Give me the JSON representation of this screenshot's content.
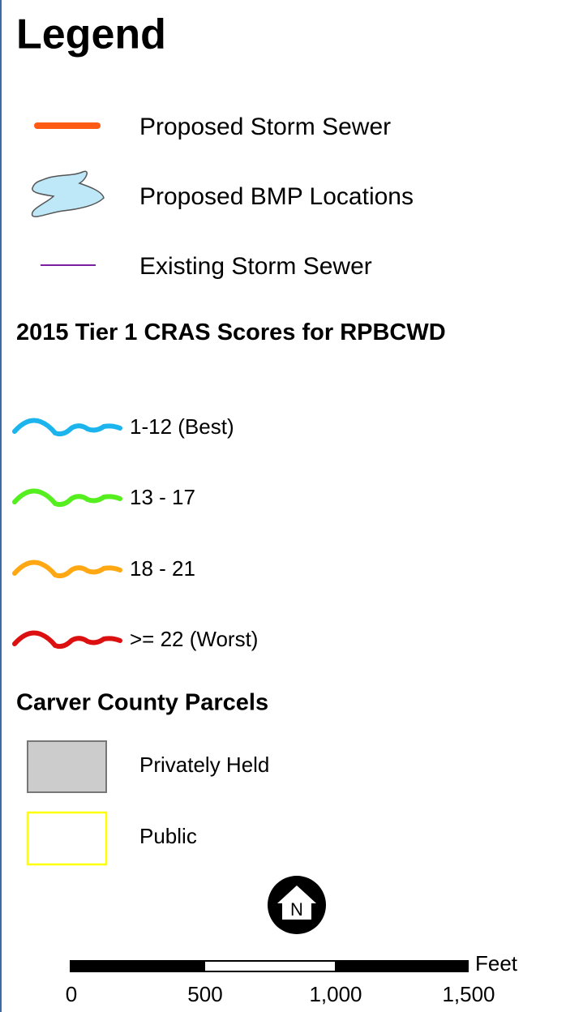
{
  "title": "Legend",
  "items": [
    {
      "label": "Proposed Storm Sewer",
      "color": "#ff5a14"
    },
    {
      "label": "Proposed BMP Locations",
      "color": "#bee8f7"
    },
    {
      "label": "Existing Storm Sewer",
      "color": "#7a1fa0"
    }
  ],
  "cras": {
    "title": "2015 Tier 1 CRAS Scores for RPBCWD",
    "items": [
      {
        "label": "1-12 (Best)",
        "color": "#1cb4ec"
      },
      {
        "label": "13 - 17",
        "color": "#55ee1e"
      },
      {
        "label": "18 - 21",
        "color": "#ffa814"
      },
      {
        "label": ">= 22 (Worst)",
        "color": "#dc1010"
      }
    ]
  },
  "parcels": {
    "title": "Carver County Parcels",
    "items": [
      {
        "label": "Privately Held",
        "color": "#cccccc"
      },
      {
        "label": "Public",
        "color": "#ffff00"
      }
    ]
  },
  "north": "N",
  "scale": {
    "unit": "Feet",
    "labels": [
      "0",
      "500",
      "1,000",
      "1,500"
    ]
  }
}
